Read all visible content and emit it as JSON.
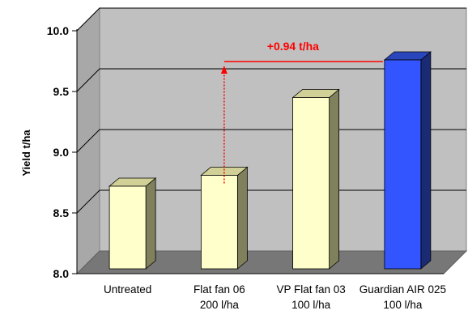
{
  "chart_data": {
    "type": "bar",
    "style": "3d",
    "categories": [
      [
        "Untreated"
      ],
      [
        "Flat fan 06",
        "200 l/ha"
      ],
      [
        "VP Flat fan 03",
        "100 l/ha"
      ],
      [
        "Guardian AIR 025",
        "100 l/ha"
      ]
    ],
    "values": [
      8.68,
      8.77,
      9.41,
      9.72
    ],
    "bar_colors": [
      "#ffffcc",
      "#ffffcc",
      "#ffffcc",
      "#3355ff"
    ],
    "ylabel": "Yield t/ha",
    "ylim": [
      8.0,
      10.0
    ],
    "yticks": [
      "8.0",
      "8.5",
      "9.0",
      "9.5",
      "10.0"
    ],
    "grid": true,
    "annotation": {
      "text": "+0.94 t/ha",
      "color": "#ff0000"
    }
  }
}
